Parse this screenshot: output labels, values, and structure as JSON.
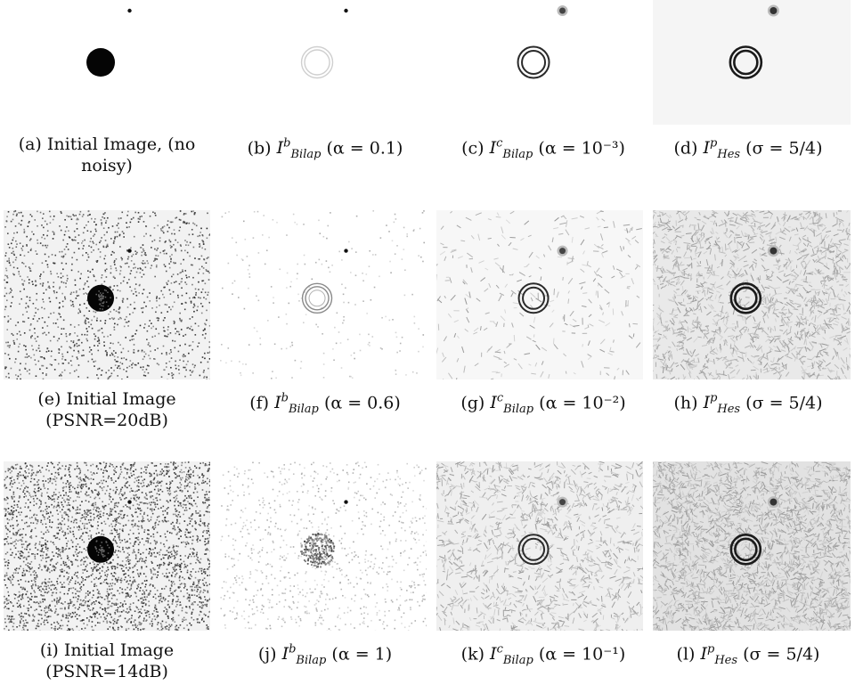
{
  "figure": {
    "panels": [
      {
        "id": "a",
        "label": "(a)",
        "caption": "Initial Image, (no noisy)",
        "kind": "original",
        "noise": 0
      },
      {
        "id": "b",
        "label": "(b)",
        "symbol": "I",
        "sup": "b",
        "sub": "Bilap",
        "param": "(α = 0.1)",
        "kind": "bilap-b",
        "noise": 0
      },
      {
        "id": "c",
        "label": "(c)",
        "symbol": "I",
        "sup": "c",
        "sub": "Bilap",
        "param": "(α = 10⁻³)",
        "kind": "bilap-c",
        "noise": 0
      },
      {
        "id": "d",
        "label": "(d)",
        "symbol": "I",
        "sup": "p",
        "sub": "Hes",
        "param": "(σ = 5/4)",
        "kind": "hes",
        "noise": 0
      },
      {
        "id": "e",
        "label": "(e)",
        "caption": "Initial Image (PSNR=20dB)",
        "kind": "original",
        "noise": 1
      },
      {
        "id": "f",
        "label": "(f)",
        "symbol": "I",
        "sup": "b",
        "sub": "Bilap",
        "param": "(α = 0.6)",
        "kind": "bilap-b",
        "noise": 1
      },
      {
        "id": "g",
        "label": "(g)",
        "symbol": "I",
        "sup": "c",
        "sub": "Bilap",
        "param": "(α = 10⁻²)",
        "kind": "bilap-c",
        "noise": 1
      },
      {
        "id": "h",
        "label": "(h)",
        "symbol": "I",
        "sup": "p",
        "sub": "Hes",
        "param": "(σ = 5/4)",
        "kind": "hes",
        "noise": 1
      },
      {
        "id": "i",
        "label": "(i)",
        "caption": "Initial Image (PSNR=14dB)",
        "kind": "original",
        "noise": 2
      },
      {
        "id": "j",
        "label": "(j)",
        "symbol": "I",
        "sup": "b",
        "sub": "Bilap",
        "param": "(α = 1)",
        "kind": "bilap-b",
        "noise": 2
      },
      {
        "id": "k",
        "label": "(k)",
        "symbol": "I",
        "sup": "c",
        "sub": "Bilap",
        "param": "(α = 10⁻¹)",
        "kind": "bilap-c",
        "noise": 2
      },
      {
        "id": "l",
        "label": "(l)",
        "symbol": "I",
        "sup": "p",
        "sub": "Hes",
        "param": "(σ = 5/4)",
        "kind": "hes",
        "noise": 2
      }
    ]
  }
}
